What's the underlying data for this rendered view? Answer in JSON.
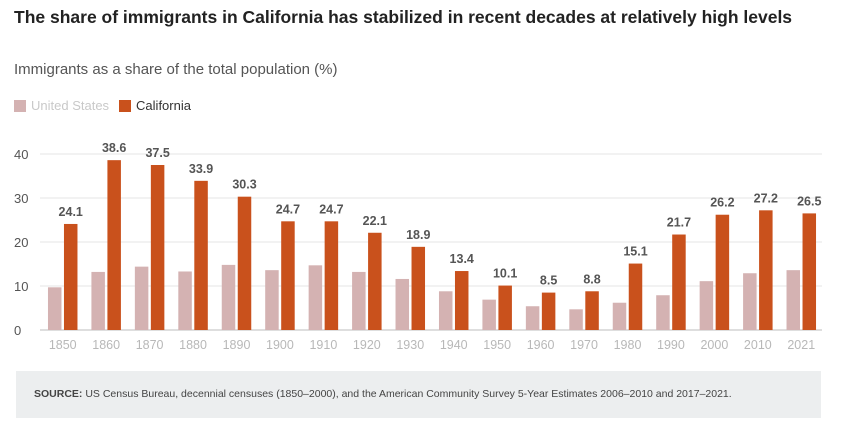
{
  "chart_data": {
    "type": "bar",
    "title": "The share of immigrants in California has stabilized in recent decades at relatively high levels",
    "subtitle": "Immigrants as a share of the total population (%)",
    "categories": [
      "1850",
      "1860",
      "1870",
      "1880",
      "1890",
      "1900",
      "1910",
      "1920",
      "1930",
      "1940",
      "1950",
      "1960",
      "1970",
      "1980",
      "1990",
      "2000",
      "2010",
      "2021"
    ],
    "series": [
      {
        "name": "United States",
        "color": "#d4b2b2",
        "values": [
          9.7,
          13.2,
          14.4,
          13.3,
          14.8,
          13.6,
          14.7,
          13.2,
          11.6,
          8.8,
          6.9,
          5.4,
          4.7,
          6.2,
          7.9,
          11.1,
          12.9,
          13.6
        ]
      },
      {
        "name": "California",
        "color": "#c9511c",
        "values": [
          24.1,
          38.6,
          37.5,
          33.9,
          30.3,
          24.7,
          24.7,
          22.1,
          18.9,
          13.4,
          10.1,
          8.5,
          8.8,
          15.1,
          21.7,
          26.2,
          27.2,
          26.5
        ]
      }
    ],
    "data_labels": [
      "24.1",
      "38.6",
      "37.5",
      "33.9",
      "30.3",
      "24.7",
      "24.7",
      "22.1",
      "18.9",
      "13.4",
      "10.1",
      "8.5",
      "8.8",
      "15.1",
      "21.7",
      "26.2",
      "27.2",
      "26.5"
    ],
    "y_ticks": [
      "0",
      "10",
      "20",
      "30",
      "40"
    ],
    "ylim": [
      0,
      40
    ],
    "grid": true,
    "legend_position": "top-left"
  },
  "legend": {
    "us": "United States",
    "ca": "California"
  },
  "source": {
    "label": "SOURCE:",
    "text": " US Census Bureau, decennial censuses (1850–2000), and the American Community Survey 5-Year Estimates 2006–2010 and 2017–2021."
  }
}
